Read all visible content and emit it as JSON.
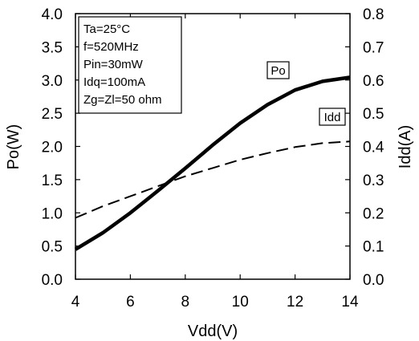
{
  "chart_data": {
    "type": "line",
    "xlabel": "Vdd(V)",
    "ylabel_left": "Po(W)",
    "ylabel_right": "Idd(A)",
    "xlim": [
      4,
      14
    ],
    "ylim_left": [
      0.0,
      4.0
    ],
    "ylim_right": [
      0.0,
      0.8
    ],
    "x_ticks": [
      "4",
      "6",
      "8",
      "10",
      "12",
      "14"
    ],
    "y_left_ticks": [
      "0.0",
      "0.5",
      "1.0",
      "1.5",
      "2.0",
      "2.5",
      "3.0",
      "3.5",
      "4.0"
    ],
    "y_right_ticks": [
      "0.0",
      "0.1",
      "0.2",
      "0.3",
      "0.4",
      "0.5",
      "0.6",
      "0.7",
      "0.8"
    ],
    "conditions": [
      "Ta=25°C",
      "f=520MHz",
      "Pin=30mW",
      "Idq=100mA",
      "Zg=Zl=50 ohm"
    ],
    "grid": false,
    "series": [
      {
        "name": "Po",
        "axis": "left",
        "style": "solid",
        "x": [
          4,
          5,
          6,
          7,
          8,
          9,
          10,
          11,
          12,
          13,
          14
        ],
        "values": [
          0.45,
          0.7,
          1.0,
          1.33,
          1.67,
          2.02,
          2.35,
          2.63,
          2.85,
          2.98,
          3.04
        ]
      },
      {
        "name": "Idd",
        "axis": "right",
        "style": "dashed",
        "x": [
          4,
          5,
          6,
          7,
          8,
          9,
          10,
          11,
          12,
          13,
          14
        ],
        "values": [
          0.185,
          0.22,
          0.25,
          0.28,
          0.31,
          0.335,
          0.36,
          0.38,
          0.398,
          0.41,
          0.415
        ]
      }
    ]
  }
}
